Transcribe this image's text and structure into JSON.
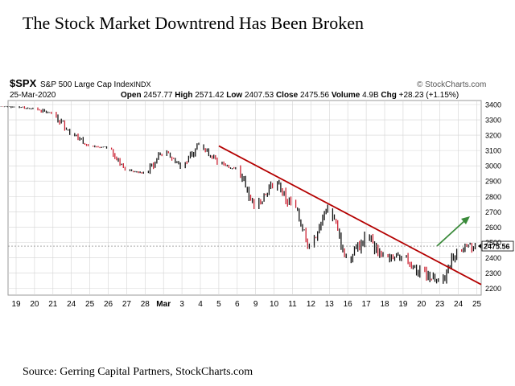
{
  "page": {
    "title": "The Stock Market Downtrend Has Been Broken",
    "source": "Source: Gerring Capital Partners, StockCharts.com"
  },
  "header": {
    "symbol": "$SPX",
    "index_name": "S&P 500 Large Cap Index",
    "exchange": "INDX",
    "date": "25-Mar-2020",
    "brand": "© StockCharts.com",
    "open_label": "Open",
    "open": "2457.77",
    "high_label": "High",
    "high": "2571.42",
    "low_label": "Low",
    "low": "2407.53",
    "close_label": "Close",
    "close": "2475.56",
    "volume_label": "Volume",
    "volume": "4.9B",
    "chg_label": "Chg",
    "chg": "+28.23 (+1.15%)"
  },
  "chart_data": {
    "type": "bar",
    "style": "intraday price bars (ohlc)",
    "x_ticks": [
      "19",
      "20",
      "21",
      "24",
      "25",
      "26",
      "27",
      "28",
      "Mar",
      "3",
      "4",
      "5",
      "6",
      "9",
      "10",
      "11",
      "12",
      "13",
      "16",
      "17",
      "18",
      "19",
      "20",
      "23",
      "24",
      "25"
    ],
    "y_ticks": [
      2200,
      2300,
      2400,
      2500,
      2600,
      2700,
      2800,
      2900,
      3000,
      3100,
      3200,
      3300,
      3400
    ],
    "ylim": [
      2145,
      3430
    ],
    "last_price": 2475.56,
    "last_price_label": "2475.56",
    "grid": true,
    "session_closes": [
      {
        "session": "Feb 19",
        "price": 3385
      },
      {
        "session": "Feb 20",
        "price": 3372
      },
      {
        "session": "Feb 21",
        "price": 3337
      },
      {
        "session": "Feb 24",
        "price": 3225
      },
      {
        "session": "Feb 25",
        "price": 3128
      },
      {
        "session": "Feb 26",
        "price": 3116
      },
      {
        "session": "Feb 27",
        "price": 2978
      },
      {
        "session": "Feb 28",
        "price": 2954
      },
      {
        "session": "Mar 2",
        "price": 3090
      },
      {
        "session": "Mar 3",
        "price": 3003
      },
      {
        "session": "Mar 4",
        "price": 3130
      },
      {
        "session": "Mar 5",
        "price": 3023
      },
      {
        "session": "Mar 6",
        "price": 2972
      },
      {
        "session": "Mar 9",
        "price": 2746
      },
      {
        "session": "Mar 10",
        "price": 2882
      },
      {
        "session": "Mar 11",
        "price": 2741
      },
      {
        "session": "Mar 12",
        "price": 2480
      },
      {
        "session": "Mar 13",
        "price": 2711
      },
      {
        "session": "Mar 16",
        "price": 2386
      },
      {
        "session": "Mar 17",
        "price": 2529
      },
      {
        "session": "Mar 18",
        "price": 2398
      },
      {
        "session": "Mar 19",
        "price": 2409
      },
      {
        "session": "Mar 20",
        "price": 2305
      },
      {
        "session": "Mar 23",
        "price": 2237
      },
      {
        "session": "Mar 24",
        "price": 2447
      },
      {
        "session": "Mar 25",
        "price": 2476
      }
    ],
    "annotations": [
      {
        "type": "downtrend line",
        "color": "#b40000",
        "from": {
          "session": "Mar 5",
          "price": 3130
        },
        "to": {
          "session": "Mar 25",
          "price": 2240
        }
      },
      {
        "type": "up arrow",
        "color": "#3a8a3a"
      }
    ],
    "colors": {
      "bars": "#111111",
      "down_bars": "#cc2233",
      "trendline": "#b40000",
      "arrow": "#3a8a3a",
      "grid": "#d4d4d4"
    }
  }
}
